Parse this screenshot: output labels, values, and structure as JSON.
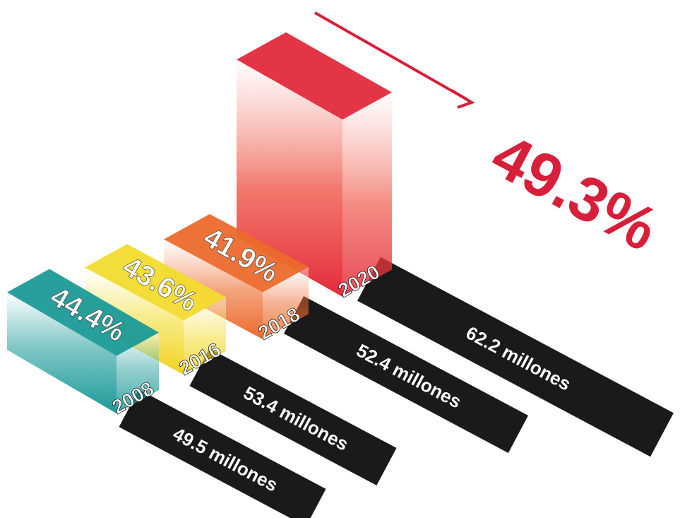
{
  "chart_data": {
    "type": "bar",
    "categories": [
      "2008",
      "2016",
      "2018",
      "2020"
    ],
    "series": [
      {
        "values": [
          44.4,
          43.6,
          41.9,
          49.3
        ]
      }
    ],
    "value_labels": [
      "44.4%",
      "43.6%",
      "41.9%"
    ],
    "highlight_label": "49.3%",
    "population_labels": [
      "49.5 millones",
      "53.4 millones",
      "52.4  millones",
      "62.2 millones"
    ],
    "population_values_millones": [
      49.5,
      53.4,
      52.4,
      62.2
    ],
    "colors": [
      "#1b9a98",
      "#f2dc2e",
      "#ec6a2c",
      "#e32a3c"
    ],
    "highlight_color": "#d81f3a",
    "plate_color": "#1a1a1a"
  }
}
